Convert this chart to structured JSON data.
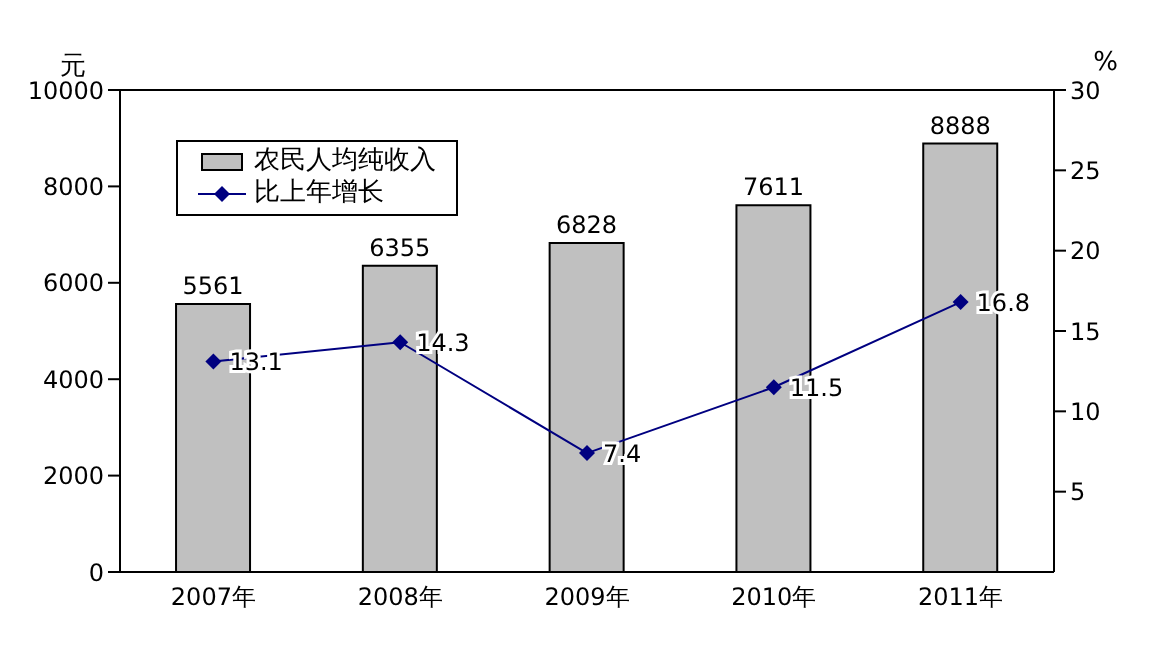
{
  "chart_data": {
    "type": "bar",
    "categories": [
      "2007年",
      "2008年",
      "2009年",
      "2010年",
      "2011年"
    ],
    "series": [
      {
        "name": "农民人均纯收入",
        "color": "#c0c0c0",
        "values": [
          5561,
          6355,
          6828,
          7611,
          8888
        ]
      },
      {
        "name": "比上年增长",
        "type": "line",
        "color": "#000080",
        "axis": "y2",
        "marker": "diamond",
        "values": [
          13.1,
          14.3,
          7.4,
          11.5,
          16.8
        ]
      }
    ],
    "ylabel": "元",
    "y2label": "%",
    "ylim": [
      0,
      10000
    ],
    "yticks": [
      0,
      2000,
      4000,
      6000,
      8000,
      10000
    ],
    "y2lim": [
      0,
      30
    ],
    "y2ticks": [
      5,
      10,
      15,
      20,
      25,
      30
    ],
    "data_labels": true,
    "grid": false,
    "legend": "top left"
  }
}
